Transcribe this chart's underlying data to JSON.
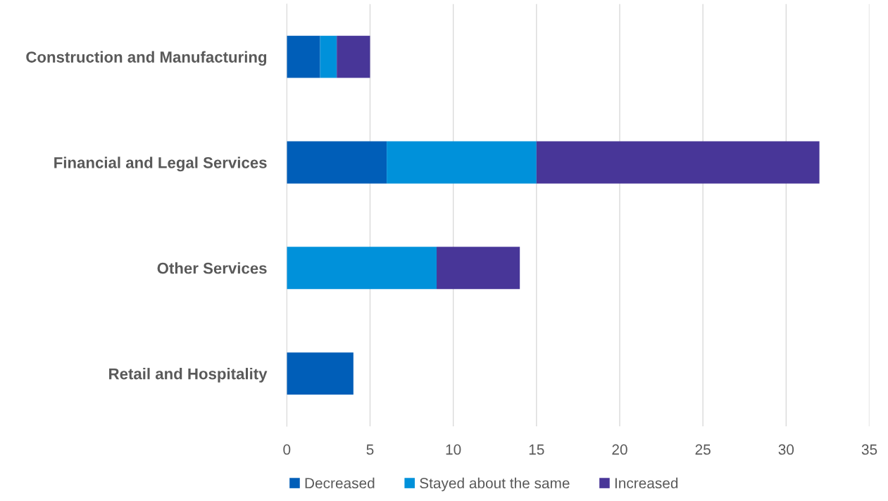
{
  "chart_data": {
    "type": "bar",
    "orientation": "horizontal",
    "stacked": true,
    "categories": [
      "Construction and Manufacturing",
      "Financial and Legal Services",
      "Other Services",
      "Retail and Hospitality"
    ],
    "series": [
      {
        "name": "Decreased",
        "color": "#005eb8",
        "values": [
          2,
          6,
          0,
          4
        ]
      },
      {
        "name": "Stayed about the same",
        "color": "#0091da",
        "values": [
          1,
          9,
          9,
          0
        ]
      },
      {
        "name": "Increased",
        "color": "#483698",
        "values": [
          2,
          17,
          5,
          0
        ]
      }
    ],
    "xlim": [
      0,
      35
    ],
    "xticks": [
      0,
      5,
      10,
      15,
      20,
      25,
      30,
      35
    ],
    "grid": "x",
    "legend": "bottom"
  }
}
